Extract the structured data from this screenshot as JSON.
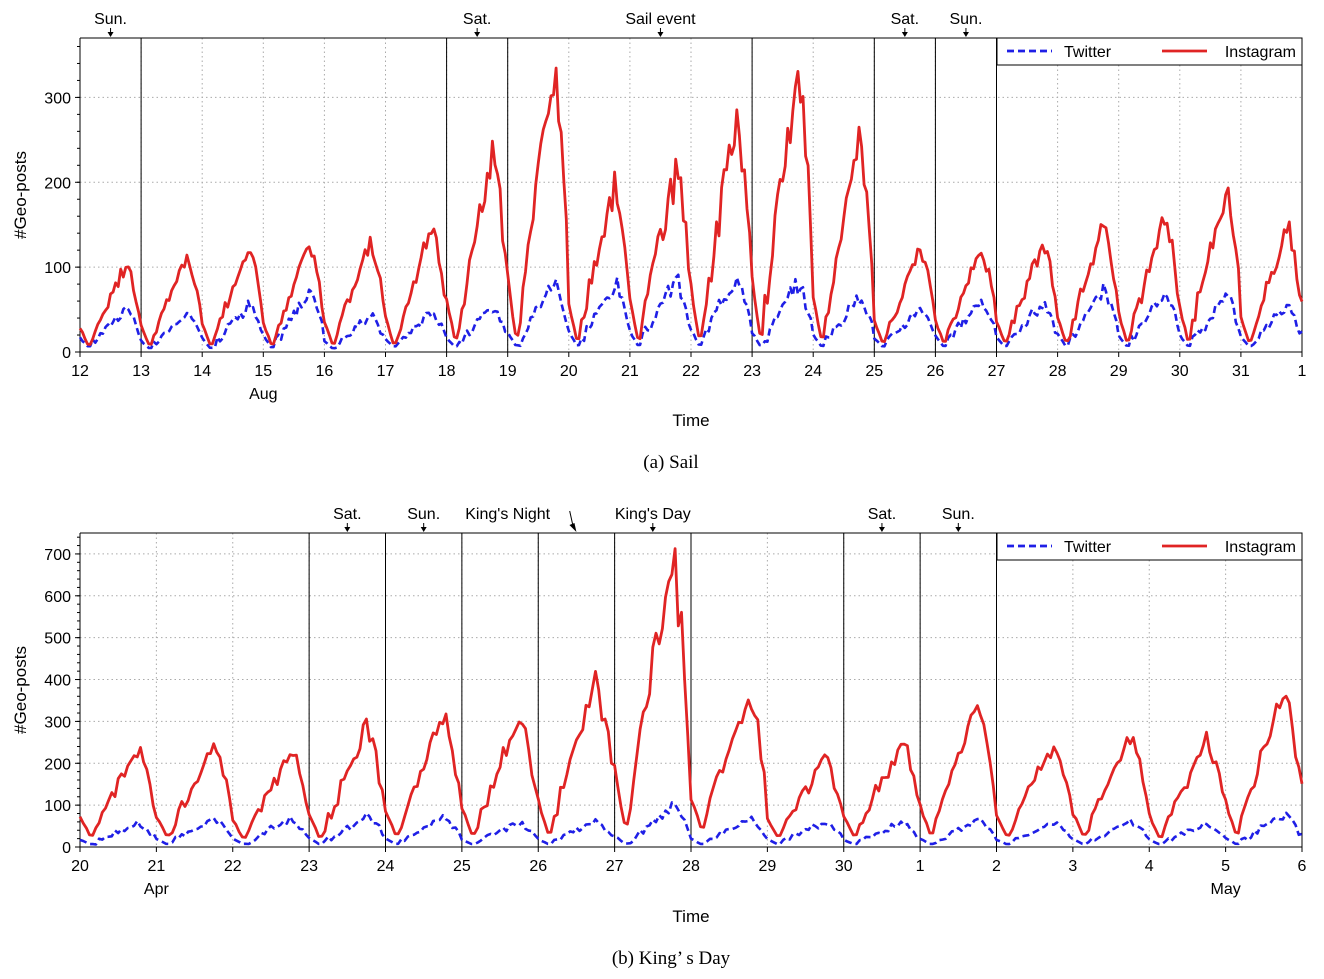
{
  "colors": {
    "twitter": "#1f1fe6",
    "instagram": "#e02424",
    "grid": "#aaaaaa",
    "axis": "#000000"
  },
  "chart_data": [
    {
      "type": "line",
      "caption": "(a)  Sail",
      "xlabel": "Time",
      "ylabel": "#Geo-posts",
      "ylim": [
        0,
        370
      ],
      "yticks": [
        0,
        100,
        200,
        300
      ],
      "xlim": [
        0,
        20
      ],
      "xtick_labels": [
        "12",
        "13",
        "14",
        "15",
        "16",
        "17",
        "18",
        "19",
        "20",
        "21",
        "22",
        "23",
        "24",
        "25",
        "26",
        "27",
        "28",
        "29",
        "30",
        "31",
        "1"
      ],
      "month_labels": [
        {
          "x": 3,
          "text": "Aug"
        }
      ],
      "day_separators": [
        1,
        6,
        7,
        11,
        13,
        14,
        15
      ],
      "annotations": [
        {
          "text": "Sun.",
          "x": 0.5,
          "arrow_x": 0.5
        },
        {
          "text": "Sat.",
          "x": 6.5,
          "arrow_x": 6.5
        },
        {
          "text": "Sail event",
          "x": 9.5,
          "arrow_x": 9.5
        },
        {
          "text": "Sat.",
          "x": 13.5,
          "arrow_x": 13.5
        },
        {
          "text": "Sun.",
          "x": 14.5,
          "arrow_x": 14.5
        }
      ],
      "legend": "top-right",
      "grid": true,
      "series": [
        {
          "name": "Twitter",
          "style": "dashed",
          "daily_peaks": [
            55,
            47,
            60,
            75,
            45,
            50,
            55,
            90,
            85,
            90,
            100,
            85,
            70,
            55,
            65,
            60,
            75,
            70,
            70,
            60
          ],
          "daily_lows": [
            5,
            3,
            3,
            3,
            3,
            5,
            5,
            5,
            5,
            5,
            5,
            5,
            5,
            5,
            5,
            5,
            5,
            5,
            5,
            5
          ]
        },
        {
          "name": "Instagram",
          "style": "solid",
          "daily_peaks": [
            110,
            120,
            130,
            135,
            140,
            160,
            250,
            355,
            210,
            230,
            300,
            360,
            265,
            130,
            130,
            135,
            155,
            170,
            200,
            155
          ],
          "daily_lows": [
            5,
            5,
            5,
            5,
            5,
            5,
            8,
            8,
            8,
            8,
            8,
            8,
            8,
            8,
            8,
            8,
            8,
            8,
            8,
            8
          ]
        }
      ]
    },
    {
      "type": "line",
      "caption": "(b)  King’ s Day",
      "xlabel": "Time",
      "ylabel": "#Geo-posts",
      "ylim": [
        0,
        750
      ],
      "yticks": [
        0,
        100,
        200,
        300,
        400,
        500,
        600,
        700
      ],
      "xlim": [
        0,
        16
      ],
      "xtick_labels": [
        "20",
        "21",
        "22",
        "23",
        "24",
        "25",
        "26",
        "27",
        "28",
        "29",
        "30",
        "1",
        "2",
        "3",
        "4",
        "5",
        "6"
      ],
      "month_labels": [
        {
          "x": 1,
          "text": "Apr"
        },
        {
          "x": 15,
          "text": "May"
        }
      ],
      "day_separators": [
        3,
        4,
        5,
        6,
        7,
        8,
        10,
        11,
        12
      ],
      "annotations": [
        {
          "text": "Sat.",
          "x": 3.5,
          "arrow_x": 3.5
        },
        {
          "text": "Sun.",
          "x": 4.5,
          "arrow_x": 4.5
        },
        {
          "text": "King's Night",
          "x": 5.6,
          "arrow_x": 6.5
        },
        {
          "text": "King's Day",
          "x": 7.5,
          "arrow_x": 7.5
        },
        {
          "text": "Sat.",
          "x": 10.5,
          "arrow_x": 10.5
        },
        {
          "text": "Sun.",
          "x": 11.5,
          "arrow_x": 11.5
        }
      ],
      "legend": "top-right",
      "grid": true,
      "series": [
        {
          "name": "Twitter",
          "style": "dashed",
          "daily_peaks": [
            60,
            70,
            70,
            75,
            75,
            60,
            65,
            100,
            70,
            65,
            60,
            70,
            60,
            65,
            60,
            80
          ],
          "daily_lows": [
            5,
            5,
            5,
            5,
            5,
            5,
            5,
            5,
            5,
            5,
            5,
            5,
            5,
            5,
            5,
            5
          ]
        },
        {
          "name": "Instagram",
          "style": "solid",
          "daily_peaks": [
            250,
            255,
            240,
            300,
            325,
            340,
            420,
            720,
            390,
            220,
            265,
            360,
            260,
            285,
            275,
            395
          ],
          "daily_lows": [
            20,
            20,
            15,
            15,
            20,
            20,
            20,
            30,
            35,
            20,
            20,
            20,
            20,
            20,
            15,
            20
          ]
        }
      ]
    }
  ]
}
